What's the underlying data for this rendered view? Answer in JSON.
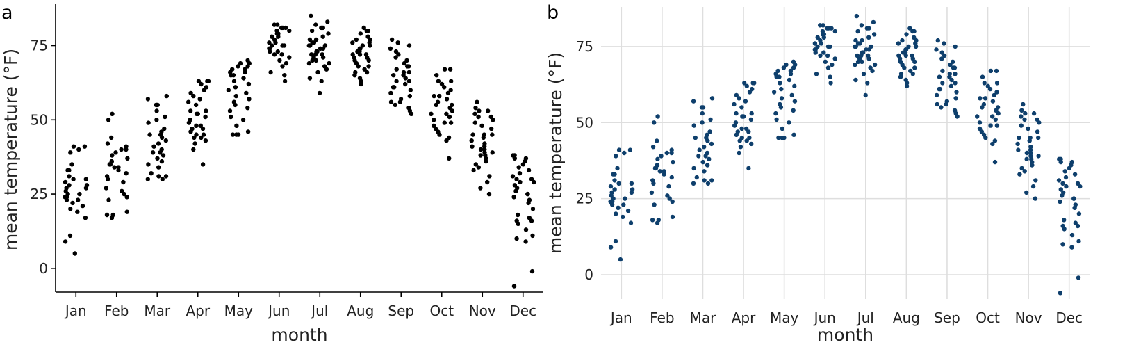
{
  "figure": {
    "panels": [
      {
        "tag": "a",
        "dot_color": "#000000",
        "style": "axis-lines"
      },
      {
        "tag": "b",
        "dot_color": "#0e3f6c",
        "style": "gridlines",
        "grid_color": "#dedede"
      }
    ]
  },
  "chart_data": [
    {
      "type": "scatter",
      "subtype": "strip-jitter",
      "panel_label": "a",
      "xlabel": "month",
      "ylabel": "mean temperature (°F)",
      "categories": [
        "Jan",
        "Feb",
        "Mar",
        "Apr",
        "May",
        "Jun",
        "Jul",
        "Aug",
        "Sep",
        "Oct",
        "Nov",
        "Dec"
      ],
      "ylim": [
        -8,
        88
      ],
      "yticks": [
        0,
        25,
        50,
        75
      ],
      "grid": false,
      "values": [
        [
          5,
          9,
          11,
          17,
          19,
          20,
          21,
          22,
          23,
          23,
          24,
          24,
          25,
          25,
          26,
          27,
          27,
          28,
          28,
          29,
          30,
          30,
          31,
          33,
          33,
          35,
          39,
          40,
          41,
          41
        ],
        [
          17,
          18,
          18,
          19,
          23,
          24,
          25,
          26,
          27,
          29,
          30,
          31,
          32,
          33,
          34,
          34,
          35,
          35,
          35,
          36,
          36,
          37,
          38,
          39,
          40,
          40,
          41,
          42,
          44,
          50,
          52
        ],
        [
          30,
          30,
          31,
          31,
          32,
          34,
          35,
          36,
          37,
          38,
          39,
          39,
          40,
          41,
          42,
          43,
          44,
          45,
          45,
          46,
          47,
          49,
          50,
          51,
          53,
          55,
          55,
          55,
          57,
          58
        ],
        [
          35,
          40,
          42,
          43,
          44,
          44,
          45,
          45,
          46,
          47,
          47,
          48,
          48,
          49,
          50,
          51,
          52,
          52,
          53,
          53,
          55,
          56,
          57,
          58,
          59,
          60,
          61,
          62,
          63,
          63,
          63
        ],
        [
          45,
          45,
          45,
          46,
          48,
          50,
          51,
          53,
          54,
          55,
          56,
          57,
          58,
          59,
          60,
          61,
          62,
          63,
          64,
          65,
          65,
          66,
          66,
          67,
          67,
          68,
          68,
          69,
          69,
          70
        ],
        [
          63,
          65,
          66,
          68,
          69,
          70,
          71,
          72,
          72,
          73,
          73,
          74,
          74,
          75,
          75,
          75,
          76,
          76,
          77,
          78,
          78,
          79,
          79,
          80,
          80,
          81,
          81,
          81,
          82,
          82
        ],
        [
          59,
          63,
          64,
          66,
          67,
          68,
          69,
          69,
          70,
          70,
          71,
          71,
          72,
          72,
          72,
          73,
          73,
          74,
          74,
          75,
          75,
          75,
          76,
          76,
          77,
          77,
          78,
          79,
          80,
          81,
          81,
          82,
          83,
          85
        ],
        [
          62,
          63,
          64,
          65,
          66,
          66,
          67,
          68,
          68,
          69,
          70,
          70,
          71,
          71,
          72,
          72,
          72,
          73,
          73,
          74,
          74,
          75,
          75,
          76,
          76,
          77,
          77,
          78,
          79,
          80,
          80,
          81
        ],
        [
          52,
          53,
          54,
          55,
          56,
          56,
          57,
          58,
          59,
          60,
          61,
          61,
          62,
          63,
          63,
          64,
          65,
          65,
          66,
          66,
          67,
          68,
          68,
          69,
          70,
          71,
          72,
          73,
          74,
          75,
          76,
          77
        ],
        [
          37,
          43,
          44,
          45,
          46,
          47,
          48,
          49,
          49,
          50,
          51,
          52,
          52,
          53,
          54,
          55,
          55,
          56,
          57,
          58,
          58,
          59,
          60,
          61,
          62,
          63,
          63,
          65,
          67,
          67
        ],
        [
          25,
          27,
          29,
          31,
          33,
          34,
          35,
          36,
          37,
          38,
          38,
          39,
          39,
          40,
          40,
          41,
          41,
          42,
          43,
          44,
          45,
          45,
          45,
          47,
          48,
          49,
          50,
          51,
          51,
          52,
          53,
          53,
          54,
          56
        ],
        [
          -6,
          -1,
          9,
          10,
          11,
          13,
          15,
          16,
          16,
          17,
          18,
          20,
          22,
          23,
          24,
          25,
          25,
          26,
          27,
          28,
          29,
          29,
          30,
          30,
          31,
          32,
          33,
          34,
          35,
          36,
          37,
          37,
          38,
          38
        ]
      ]
    },
    {
      "type": "scatter",
      "subtype": "strip-jitter",
      "panel_label": "b",
      "xlabel": "month",
      "ylabel": "mean temperature (°F)",
      "categories": [
        "Jan",
        "Feb",
        "Mar",
        "Apr",
        "May",
        "Jun",
        "Jul",
        "Aug",
        "Sep",
        "Oct",
        "Nov",
        "Dec"
      ],
      "ylim": [
        -8,
        88
      ],
      "yticks": [
        0,
        25,
        50,
        75
      ],
      "grid": true,
      "values": [
        [
          5,
          9,
          11,
          17,
          19,
          20,
          21,
          22,
          23,
          23,
          24,
          24,
          25,
          25,
          26,
          27,
          27,
          28,
          28,
          29,
          30,
          30,
          31,
          33,
          33,
          35,
          39,
          40,
          41,
          41
        ],
        [
          17,
          18,
          18,
          19,
          23,
          24,
          25,
          26,
          27,
          29,
          30,
          31,
          32,
          33,
          34,
          34,
          35,
          35,
          35,
          36,
          36,
          37,
          38,
          39,
          40,
          40,
          41,
          42,
          44,
          50,
          52
        ],
        [
          30,
          30,
          31,
          31,
          32,
          34,
          35,
          36,
          37,
          38,
          39,
          39,
          40,
          41,
          42,
          43,
          44,
          45,
          45,
          46,
          47,
          49,
          50,
          51,
          53,
          55,
          55,
          55,
          57,
          58
        ],
        [
          35,
          40,
          42,
          43,
          44,
          44,
          45,
          45,
          46,
          47,
          47,
          48,
          48,
          49,
          50,
          51,
          52,
          52,
          53,
          53,
          55,
          56,
          57,
          58,
          59,
          60,
          61,
          62,
          63,
          63,
          63
        ],
        [
          45,
          45,
          45,
          46,
          48,
          50,
          51,
          53,
          54,
          55,
          56,
          57,
          58,
          59,
          60,
          61,
          62,
          63,
          64,
          65,
          65,
          66,
          66,
          67,
          67,
          68,
          68,
          69,
          69,
          70
        ],
        [
          63,
          65,
          66,
          68,
          69,
          70,
          71,
          72,
          72,
          73,
          73,
          74,
          74,
          75,
          75,
          75,
          76,
          76,
          77,
          78,
          78,
          79,
          79,
          80,
          80,
          81,
          81,
          81,
          82,
          82
        ],
        [
          59,
          63,
          64,
          66,
          67,
          68,
          69,
          69,
          70,
          70,
          71,
          71,
          72,
          72,
          72,
          73,
          73,
          74,
          74,
          75,
          75,
          75,
          76,
          76,
          77,
          77,
          78,
          79,
          80,
          81,
          81,
          82,
          83,
          85
        ],
        [
          62,
          63,
          64,
          65,
          66,
          66,
          67,
          68,
          68,
          69,
          70,
          70,
          71,
          71,
          72,
          72,
          72,
          73,
          73,
          74,
          74,
          75,
          75,
          76,
          76,
          77,
          77,
          78,
          79,
          80,
          80,
          81
        ],
        [
          52,
          53,
          54,
          55,
          56,
          56,
          57,
          58,
          59,
          60,
          61,
          61,
          62,
          63,
          63,
          64,
          65,
          65,
          66,
          66,
          67,
          68,
          68,
          69,
          70,
          71,
          72,
          73,
          74,
          75,
          76,
          77
        ],
        [
          37,
          43,
          44,
          45,
          46,
          47,
          48,
          49,
          49,
          50,
          51,
          52,
          52,
          53,
          54,
          55,
          55,
          56,
          57,
          58,
          58,
          59,
          60,
          61,
          62,
          63,
          63,
          65,
          67,
          67
        ],
        [
          25,
          27,
          29,
          31,
          33,
          34,
          35,
          36,
          37,
          38,
          38,
          39,
          39,
          40,
          40,
          41,
          41,
          42,
          43,
          44,
          45,
          45,
          45,
          47,
          48,
          49,
          50,
          51,
          51,
          52,
          53,
          53,
          54,
          56
        ],
        [
          -6,
          -1,
          9,
          10,
          11,
          13,
          15,
          16,
          16,
          17,
          18,
          20,
          22,
          23,
          24,
          25,
          25,
          26,
          27,
          28,
          29,
          29,
          30,
          30,
          31,
          32,
          33,
          34,
          35,
          36,
          37,
          37,
          38,
          38
        ]
      ]
    }
  ]
}
